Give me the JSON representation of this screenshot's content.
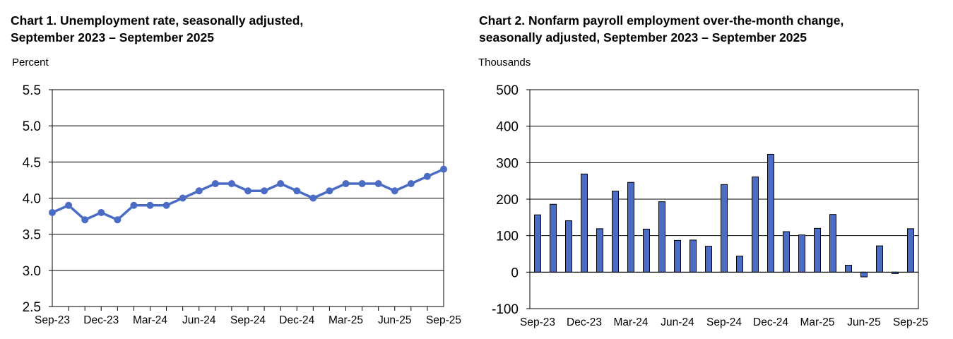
{
  "chart_data": [
    {
      "type": "line",
      "title_line1": "Chart 1. Unemployment rate, seasonally adjusted,",
      "title_line2": "September 2023 – September 2025",
      "ylabel": "Percent",
      "xlabel": "",
      "ylim": [
        2.5,
        5.5
      ],
      "yticks": [
        "2.5",
        "3.0",
        "3.5",
        "4.0",
        "4.5",
        "5.0",
        "5.5"
      ],
      "x": [
        "Sep-23",
        "Oct-23",
        "Nov-23",
        "Dec-23",
        "Jan-24",
        "Feb-24",
        "Mar-24",
        "Apr-24",
        "May-24",
        "Jun-24",
        "Jul-24",
        "Aug-24",
        "Sep-24",
        "Oct-24",
        "Nov-24",
        "Dec-24",
        "Jan-25",
        "Feb-25",
        "Mar-25",
        "Apr-25",
        "May-25",
        "Jun-25",
        "Jul-25",
        "Aug-25",
        "Sep-25"
      ],
      "xtick_labels": [
        "Sep-23",
        "Dec-23",
        "Mar-24",
        "Jun-24",
        "Sep-24",
        "Dec-24",
        "Mar-25",
        "Jun-25",
        "Sep-25"
      ],
      "values": [
        3.8,
        3.9,
        3.7,
        3.8,
        3.7,
        3.9,
        3.9,
        3.9,
        4.0,
        4.1,
        4.2,
        4.2,
        4.1,
        4.1,
        4.2,
        4.1,
        4.0,
        4.1,
        4.2,
        4.2,
        4.2,
        4.1,
        4.2,
        4.3,
        4.4
      ],
      "color": "#4a6cc5",
      "grid": true,
      "legend": "none"
    },
    {
      "type": "bar",
      "title_line1": "Chart 2. Nonfarm payroll employment over-the-month change,",
      "title_line2": "seasonally adjusted, September 2023 – September 2025",
      "ylabel": "Thousands",
      "xlabel": "",
      "ylim": [
        -100,
        500
      ],
      "yticks": [
        "-100",
        "0",
        "100",
        "200",
        "300",
        "400",
        "500"
      ],
      "categories": [
        "Sep-23",
        "Oct-23",
        "Nov-23",
        "Dec-23",
        "Jan-24",
        "Feb-24",
        "Mar-24",
        "Apr-24",
        "May-24",
        "Jun-24",
        "Jul-24",
        "Aug-24",
        "Sep-24",
        "Oct-24",
        "Nov-24",
        "Dec-24",
        "Jan-25",
        "Feb-25",
        "Mar-25",
        "Apr-25",
        "May-25",
        "Jun-25",
        "Jul-25",
        "Aug-25",
        "Sep-25"
      ],
      "xtick_labels": [
        "Sep-23",
        "Dec-23",
        "Mar-24",
        "Jun-24",
        "Sep-24",
        "Dec-24",
        "Mar-25",
        "Jun-25",
        "Sep-25"
      ],
      "values": [
        157,
        186,
        141,
        269,
        119,
        222,
        246,
        118,
        193,
        87,
        88,
        71,
        240,
        44,
        261,
        323,
        111,
        102,
        120,
        158,
        19,
        -13,
        72,
        -4,
        119
      ],
      "color": "#4a6cc5",
      "grid": true,
      "legend": "none"
    }
  ]
}
